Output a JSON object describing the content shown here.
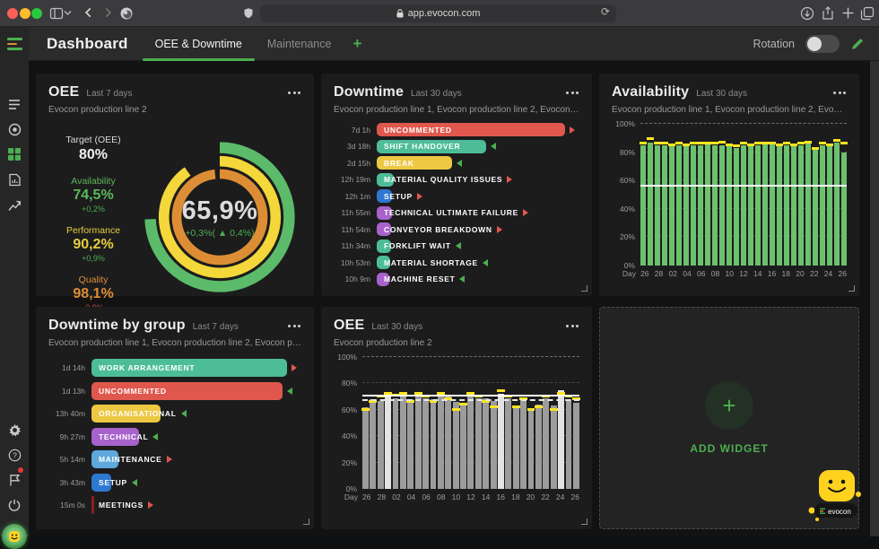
{
  "browser": {
    "url": "app.evocon.com",
    "traffic_lights": [
      "#ff5f57",
      "#febc2e",
      "#28c840"
    ]
  },
  "nav": {
    "title": "Dashboard",
    "tabs": [
      {
        "label": "OEE & Downtime",
        "active": true
      },
      {
        "label": "Maintenance",
        "active": false
      }
    ],
    "add_tab": "+",
    "rotation_label": "Rotation",
    "accent": "#4caf50"
  },
  "sidebar": {
    "top_icons": [
      "lines-list-icon",
      "shift-target-icon",
      "dashboard-grid-icon",
      "report-document-icon",
      "trend-chart-icon"
    ],
    "bottom_icons": [
      "settings-gear-icon",
      "help-icon",
      "whats-new-flag-icon",
      "logout-power-icon",
      "chat-avatar"
    ]
  },
  "widgets": {
    "oee7": {
      "title": "OEE",
      "period": "Last 7 days",
      "subtitle": "Evocon production line 2",
      "target_label": "Target (OEE)",
      "target_value": "80%",
      "metrics": [
        {
          "label": "Availability",
          "value": "74,5%",
          "delta": "+0,2%",
          "color": "#5cb85c",
          "delta_color": "#4caf50"
        },
        {
          "label": "Performance",
          "value": "90,2%",
          "delta": "+0,9%",
          "color": "#e6ce3e",
          "delta_color": "#4caf50"
        },
        {
          "label": "Quality",
          "value": "98,1%",
          "delta": "-0,9%",
          "color": "#dd8e35",
          "delta_color": "#cc4b43"
        }
      ],
      "gauge": {
        "value": "65,9%",
        "delta": "+0,3%( ▲ 0,4%)",
        "rings": [
          {
            "name": "availability",
            "pct": 74.5,
            "color": "#5bbb6a"
          },
          {
            "name": "performance",
            "pct": 90.2,
            "color": "#f4d73a"
          },
          {
            "name": "quality",
            "pct": 98.1,
            "color": "#dd8e35"
          }
        ]
      }
    },
    "downtime30": {
      "title": "Downtime",
      "period": "Last 30 days",
      "subtitle": "Evocon production line 1, Evocon production line 2, Evocon production line 3, Evoco...",
      "rows": [
        {
          "time": "7d 1h",
          "label": "UNCOMMENTED",
          "color": "#e0584d",
          "pct": 93,
          "dir": "right"
        },
        {
          "time": "3d 18h",
          "label": "SHIFT HANDOVER",
          "color": "#4dbd98",
          "pct": 54,
          "dir": "left"
        },
        {
          "time": "2d 15h",
          "label": "BREAK",
          "color": "#edc843",
          "pct": 37,
          "dir": "left"
        },
        {
          "time": "12h 19m",
          "label": "MATERIAL QUALITY ISSUES",
          "color": "#4dbd98",
          "pct": 8.2,
          "dir": "right"
        },
        {
          "time": "12h 1m",
          "label": "SETUP",
          "color": "#2e78d2",
          "pct": 7.6,
          "dir": "right"
        },
        {
          "time": "11h 55m",
          "label": "TECHNICAL ULTIMATE FAILURE",
          "color": "#a763cb",
          "pct": 7.4,
          "dir": "right"
        },
        {
          "time": "11h 54m",
          "label": "CONVEYOR BREAKDOWN",
          "color": "#a763cb",
          "pct": 7.3,
          "dir": "right"
        },
        {
          "time": "11h 34m",
          "label": "FORKLIFT WAIT",
          "color": "#4dbd98",
          "pct": 7.0,
          "dir": "left"
        },
        {
          "time": "10h 53m",
          "label": "MATERIAL SHORTAGE",
          "color": "#4dbd98",
          "pct": 6.6,
          "dir": "left"
        },
        {
          "time": "10h 9m",
          "label": "MACHINE RESET",
          "color": "#a763cb",
          "pct": 6.2,
          "dir": "left"
        }
      ]
    },
    "availability30": {
      "title": "Availability",
      "period": "Last 30 days",
      "subtitle": "Evocon production line 1, Evocon production line 2, Evocon production line 3, Evoco...",
      "chart": {
        "type": "bar",
        "x_title": "Day",
        "ymax": 100,
        "yticks": [
          100,
          80,
          60,
          40,
          20,
          0
        ],
        "days": [
          "26",
          "27",
          "28",
          "01",
          "02",
          "03",
          "04",
          "05",
          "06",
          "07",
          "08",
          "09",
          "10",
          "11",
          "12",
          "13",
          "14",
          "15",
          "16",
          "17",
          "18",
          "19",
          "20",
          "21",
          "22",
          "23",
          "24",
          "25",
          "26"
        ],
        "values": [
          85,
          87,
          85,
          85,
          84,
          85,
          84,
          85,
          85,
          86,
          85,
          85,
          84,
          83,
          85,
          85,
          85,
          86,
          87,
          84,
          85,
          84,
          85,
          86,
          83,
          85,
          86,
          87,
          80
        ],
        "targets": [
          86,
          89,
          86,
          86,
          85,
          86,
          85,
          86,
          86,
          86,
          86,
          87,
          85,
          84,
          86,
          85,
          86,
          86,
          86,
          85,
          86,
          85,
          86,
          87,
          82,
          86,
          85,
          88,
          86
        ],
        "bar_color": "#6cc06e",
        "target_color": "#ffe41f",
        "solid_line": 56,
        "dashed_line": null,
        "height": 158
      }
    },
    "group7": {
      "title": "Downtime by group",
      "period": "Last 7 days",
      "subtitle": "Evocon production line 1, Evocon production line 2, Evocon production line 3, Evoco...",
      "rows": [
        {
          "time": "1d 14h",
          "label": "WORK ARRANGEMENT",
          "color": "#4dbd98",
          "pct": 93,
          "dir": "right"
        },
        {
          "time": "1d 13h",
          "label": "UNCOMMENTED",
          "color": "#e0584d",
          "pct": 91,
          "dir": "left"
        },
        {
          "time": "13h 40m",
          "label": "ORGANISATIONAL",
          "color": "#edc843",
          "pct": 33,
          "dir": "left"
        },
        {
          "time": "9h 27m",
          "label": "TECHNICAL",
          "color": "#a763cb",
          "pct": 22.5,
          "dir": "left"
        },
        {
          "time": "5h 14m",
          "label": "MAINTENANCE",
          "color": "#5fa8dc",
          "pct": 13,
          "dir": "right"
        },
        {
          "time": "3h 43m",
          "label": "SETUP",
          "color": "#2e78d2",
          "pct": 9.5,
          "dir": "left"
        },
        {
          "time": "15m 0s",
          "label": "MEETINGS",
          "color": "#8b2020",
          "pct": 1.2,
          "dir": "right"
        }
      ]
    },
    "oee30": {
      "title": "OEE",
      "period": "Last 30 days",
      "subtitle": "Evocon production line 2",
      "chart": {
        "type": "bar",
        "x_title": "Day",
        "ymax": 100,
        "yticks": [
          100,
          80,
          60,
          40,
          20,
          0
        ],
        "days": [
          "26",
          "27",
          "28",
          "01",
          "02",
          "03",
          "04",
          "05",
          "06",
          "07",
          "08",
          "09",
          "10",
          "11",
          "12",
          "13",
          "14",
          "15",
          "16",
          "17",
          "18",
          "19",
          "20",
          "21",
          "22",
          "23",
          "24",
          "25",
          "26"
        ],
        "values": [
          62,
          68,
          67,
          70,
          69,
          70,
          68,
          70,
          69,
          68,
          70,
          70,
          66,
          63,
          70,
          69,
          69,
          67,
          72,
          69,
          63,
          69,
          61,
          64,
          69,
          63,
          75,
          68,
          65
        ],
        "targets": [
          60,
          66,
          70,
          72,
          71,
          72,
          66,
          72,
          70,
          66,
          72,
          68,
          60,
          64,
          72,
          70,
          66,
          62,
          74,
          70,
          62,
          68,
          60,
          62,
          70,
          60,
          72,
          70,
          68
        ],
        "bar_color": "#9c9c9c",
        "light_color": "#e3e3e3",
        "light_indices": [
          3,
          18,
          26
        ],
        "target_color": "#ffe41f",
        "solid_line": 70,
        "dashed_line": 67,
        "height": 147
      }
    },
    "add_widget": {
      "label": "ADD WIDGET"
    }
  },
  "chat": {
    "brand": "evocon"
  }
}
